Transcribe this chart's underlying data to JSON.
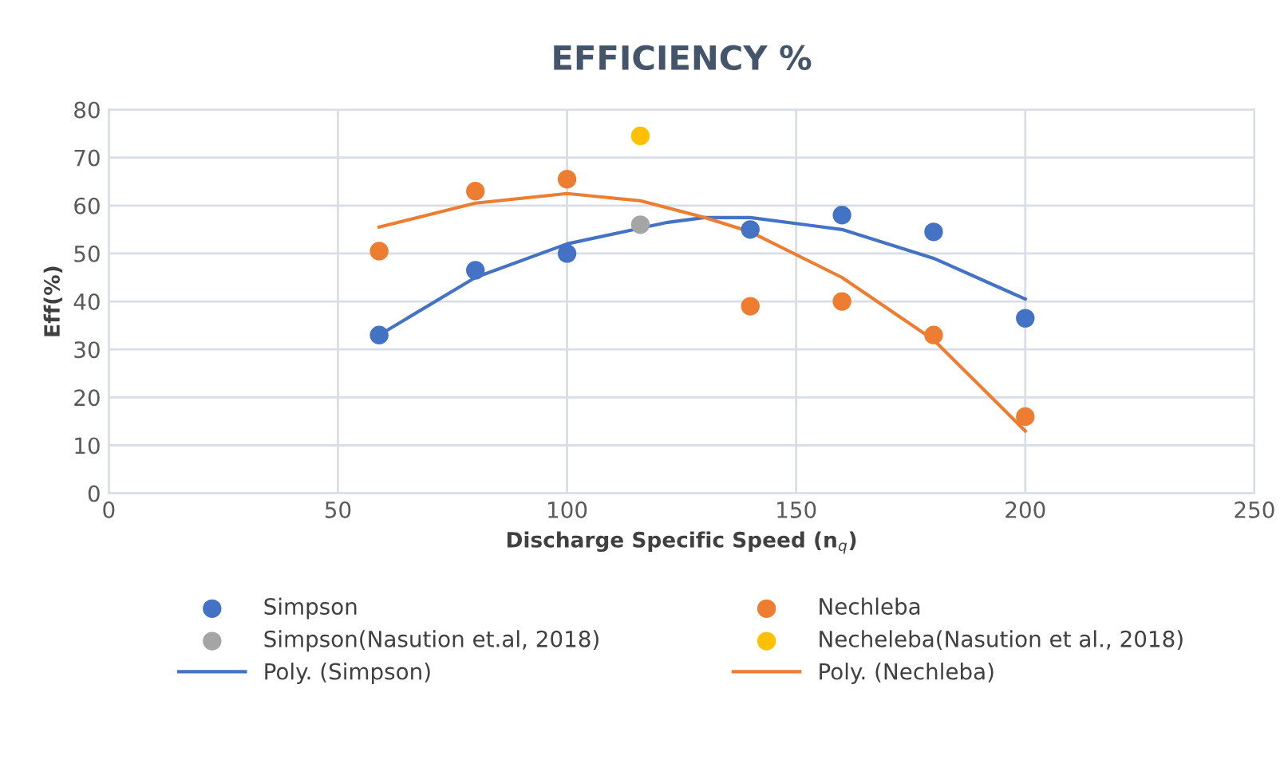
{
  "chart_data": {
    "type": "scatter",
    "title": "EFFICIENCY %",
    "xlabel": "Discharge Specific Speed (n$_{q}$)",
    "ylabel": "Eff(%)",
    "xlim": [
      0,
      250
    ],
    "xticks": [
      0,
      50,
      100,
      150,
      200,
      250
    ],
    "ylim": [
      0,
      80
    ],
    "yticks": [
      0,
      10,
      20,
      30,
      40,
      50,
      60,
      70,
      80
    ],
    "grid": true,
    "legend": "bottom",
    "series": [
      {
        "name": "Simpson",
        "marker": "circle",
        "color": "#4472c4",
        "x": [
          59,
          80,
          100,
          140,
          160,
          180,
          200
        ],
        "values": [
          33,
          46.5,
          50,
          55,
          58,
          54.5,
          36.5
        ]
      },
      {
        "name": "Nechleba",
        "marker": "circle",
        "color": "#ed7d31",
        "x": [
          59,
          80,
          100,
          140,
          160,
          180,
          200
        ],
        "values": [
          50.5,
          63,
          65.5,
          39,
          40,
          33,
          16
        ]
      },
      {
        "name": "Simpson(Nasution et.al, 2018)",
        "marker": "circle",
        "color": "#a5a5a5",
        "x": [
          116
        ],
        "values": [
          56
        ]
      },
      {
        "name": "Necheleba(Nasution et al., 2018)",
        "marker": "circle",
        "color": "#ffc000",
        "x": [
          116
        ],
        "values": [
          74.5
        ]
      },
      {
        "name": "Poly. (Simpson)",
        "type": "line",
        "marker": "none",
        "color": "#4472c4",
        "x": [
          59,
          80,
          100,
          122,
          130,
          140,
          160,
          180,
          200
        ],
        "values": [
          33,
          45,
          52,
          56.5,
          57.5,
          57.5,
          55,
          49,
          40.5
        ]
      },
      {
        "name": "Poly. (Nechleba)",
        "type": "line",
        "marker": "none",
        "color": "#ed7d31",
        "x": [
          59,
          80,
          100,
          116,
          130,
          140,
          160,
          180,
          200
        ],
        "values": [
          55.5,
          60.5,
          62.5,
          61,
          57.5,
          54.5,
          45,
          32,
          13
        ]
      }
    ]
  }
}
